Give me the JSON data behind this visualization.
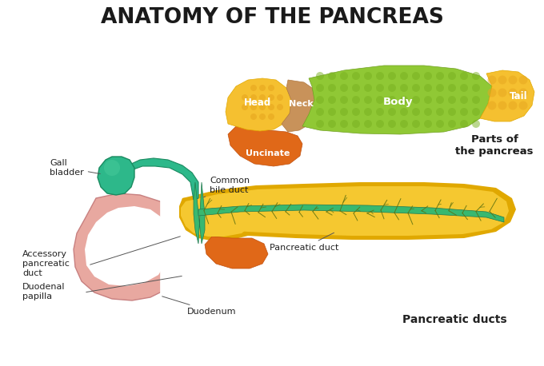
{
  "title": "ANATOMY OF THE PANCREAS",
  "title_fontsize": 19,
  "title_fontweight": "bold",
  "labels": {
    "gall_bladder": "Gall\nbladder",
    "common_bile_duct": "Common\nbile duct",
    "head": "Head",
    "neck": "Neck",
    "body": "Body",
    "tail": "Tail",
    "uncinate": "Uncinate",
    "parts_of_pancreas": "Parts of\nthe pancreas",
    "accessory_duct": "Accessory\npancreatic\nduct",
    "duodenal_papilla": "Duodenal\npapilla",
    "pancreatic_duct": "Pancreatic duct",
    "duodenum": "Duodenum",
    "pancreatic_ducts": "Pancreatic ducts"
  },
  "colors": {
    "background": "#ffffff",
    "gall_bladder": "#2db88a",
    "gall_bladder_dark": "#1a8a60",
    "pancreas_head": "#f5c030",
    "pancreas_neck": "#c8925a",
    "pancreas_body": "#90c835",
    "pancreas_tail_yellow": "#f5c030",
    "uncinate": "#e06818",
    "duodenum_fill": "#e8a8a0",
    "duodenum_edge": "#c88080",
    "pancreas_yellow": "#f5c830",
    "pancreas_yellow_dark": "#e0a800",
    "duct_green": "#38b870",
    "duct_dark": "#207850",
    "branch_color": "#5a7010",
    "text_dark": "#1a1a1a",
    "text_white": "#ffffff",
    "text_label": "#222222",
    "dot_head": "#e8a820",
    "dot_body": "#78b020",
    "dot_tail": "#f0c820"
  }
}
